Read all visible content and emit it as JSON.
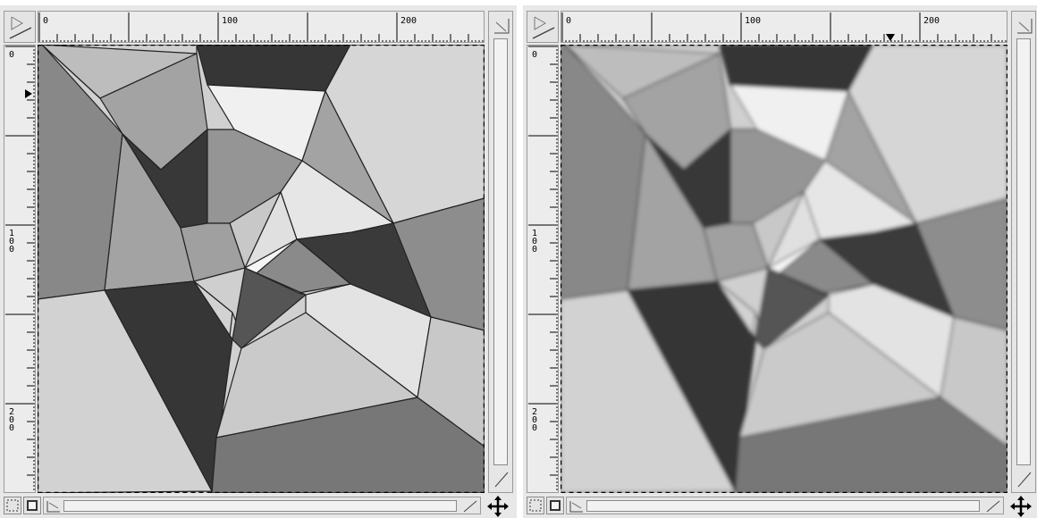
{
  "windows": [
    {
      "id": "left",
      "hruler_labels": [
        "0",
        "100",
        "200"
      ],
      "vruler_labels": [
        "0",
        "1\n0\n0",
        "2\n0\n0"
      ],
      "image_style": "sharp"
    },
    {
      "id": "right",
      "hruler_labels": [
        "0",
        "100",
        "200"
      ],
      "vruler_labels": [
        "0",
        "1\n0\n0",
        "2\n0\n0"
      ],
      "image_style": "blurred"
    }
  ],
  "icons": {
    "ruler_corner": "ruler-corner-icon",
    "quickmask": "quickmask-icon",
    "quickmask_toggle": "quickmask-toggle-icon",
    "navigate": "navigate-icon"
  }
}
